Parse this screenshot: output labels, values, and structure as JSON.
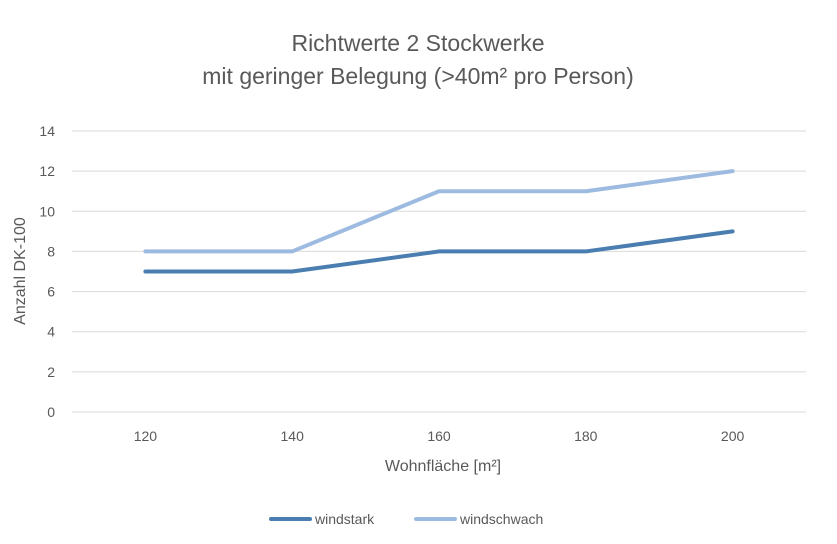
{
  "chart_data": {
    "type": "line",
    "title": [
      "Richtwerte 2 Stockwerke",
      "mit geringer Belegung (>40m² pro Person)"
    ],
    "xlabel": "Wohnfläche [m²]",
    "ylabel": "Anzahl DK-100",
    "categories": [
      "120",
      "140",
      "160",
      "180",
      "200"
    ],
    "ylim": [
      0,
      14
    ],
    "yticks": [
      "0",
      "2",
      "4",
      "6",
      "8",
      "10",
      "12",
      "14"
    ],
    "grid": true,
    "legend_position": "bottom",
    "series": [
      {
        "name": "windstark",
        "values": [
          7,
          7,
          8,
          8,
          9
        ],
        "color": "#4a7eb0"
      },
      {
        "name": "windschwach",
        "values": [
          8,
          8,
          11,
          11,
          12
        ],
        "color": "#9dbbe0"
      }
    ]
  }
}
